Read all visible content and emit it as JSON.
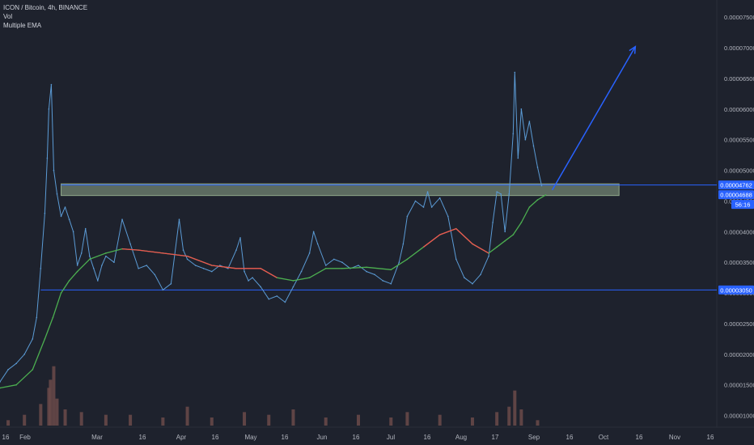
{
  "legend": {
    "symbol_line": "ICON / Bitcoin, 4h, BINANCE",
    "volume_label": "Vol",
    "indicator_label": "Multiple EMA"
  },
  "colors": {
    "background": "#1e222d",
    "grid": "#2a2e39",
    "price_line": "#5b9bd5",
    "ema_fast": "#ef5350",
    "ema_slow": "#4caf50",
    "support_line": "#2962ff",
    "zone_fill": "#8fa88a",
    "arrow": "#2962ff",
    "volume": "#6b4a4a",
    "text": "#b2b5be",
    "label_bg": "#2962ff",
    "label_text": "#ffffff"
  },
  "chart_data": {
    "type": "line",
    "title": "ICON / Bitcoin, 4h, BINANCE",
    "xlabel": "",
    "ylabel": "",
    "x_tick_labels": [
      "16",
      "Feb",
      "Mar",
      "16",
      "Apr",
      "16",
      "May",
      "16",
      "Jun",
      "16",
      "Jul",
      "16",
      "Aug",
      "17",
      "Sep",
      "16",
      "Oct",
      "16",
      "Nov",
      "16"
    ],
    "y_tick_labels": [
      "0.00007500",
      "0.00007000",
      "0.00006500",
      "0.00006000",
      "0.00005500",
      "0.00005000",
      "0.00004500",
      "0.00004000",
      "0.00003500",
      "0.00003000",
      "0.00002500",
      "0.00002000",
      "0.00001500",
      "0.00001000"
    ],
    "y_ticks": [
      7.5e-05,
      7e-05,
      6.5e-05,
      6e-05,
      5.5e-05,
      5e-05,
      4.5e-05,
      4e-05,
      3.5e-05,
      3e-05,
      2.5e-05,
      2e-05,
      1.5e-05,
      1e-05
    ],
    "ylim": [
      8.1e-06,
      7.78e-05
    ],
    "xlim": [
      0,
      880
    ],
    "price_labels": [
      {
        "text": "0.00004762",
        "value": 4.762e-05
      },
      {
        "text": "0.00004688",
        "value": 4.688e-05
      },
      {
        "text": "56:16",
        "value": 4.5e-05
      },
      {
        "text": "0.00003050",
        "value": 3.05e-05
      }
    ],
    "support_level": 3.05e-05,
    "resistance_level": 4.762e-05,
    "zone": {
      "x_start": 75,
      "x_end": 760,
      "top": 4.78e-05,
      "bottom": 4.59e-05
    },
    "arrow": {
      "from": [
        678,
        4.68e-05
      ],
      "to": [
        780,
        7.02e-05
      ]
    },
    "series": [
      {
        "name": "ICON / Bitcoin",
        "x": [
          0,
          10,
          20,
          30,
          40,
          45,
          50,
          55,
          58,
          60,
          63,
          66,
          70,
          75,
          80,
          85,
          90,
          95,
          100,
          105,
          110,
          115,
          120,
          125,
          130,
          140,
          150,
          160,
          170,
          180,
          190,
          200,
          210,
          220,
          225,
          230,
          240,
          250,
          260,
          270,
          280,
          290,
          295,
          300,
          305,
          310,
          320,
          330,
          340,
          350,
          360,
          370,
          380,
          385,
          390,
          400,
          410,
          420,
          430,
          440,
          450,
          460,
          470,
          480,
          490,
          495,
          500,
          510,
          520,
          525,
          530,
          540,
          550,
          560,
          570,
          580,
          590,
          600,
          605,
          610,
          615,
          620,
          625,
          630,
          632,
          636,
          640,
          645,
          650,
          655,
          660,
          665
        ],
        "y": [
          1.55e-05,
          1.75e-05,
          1.85e-05,
          2e-05,
          2.25e-05,
          2.6e-05,
          3.4e-05,
          4.3e-05,
          5.2e-05,
          6e-05,
          6.4e-05,
          5e-05,
          4.615e-05,
          4.25e-05,
          4.4e-05,
          4.2e-05,
          4e-05,
          3.45e-05,
          3.65e-05,
          4.05e-05,
          3.6e-05,
          3.4e-05,
          3.2e-05,
          3.45e-05,
          3.6e-05,
          3.5e-05,
          4.2e-05,
          3.8e-05,
          3.4e-05,
          3.45e-05,
          3.3e-05,
          3.05e-05,
          3.15e-05,
          4.2e-05,
          3.7e-05,
          3.55e-05,
          3.45e-05,
          3.4e-05,
          3.35e-05,
          3.45e-05,
          3.4e-05,
          3.7e-05,
          3.9e-05,
          3.35e-05,
          3.2e-05,
          3.25e-05,
          3.1e-05,
          2.9e-05,
          2.95e-05,
          2.85e-05,
          3.1e-05,
          3.35e-05,
          3.65e-05,
          4e-05,
          3.8e-05,
          3.45e-05,
          3.55e-05,
          3.5e-05,
          3.4e-05,
          3.45e-05,
          3.35e-05,
          3.3e-05,
          3.2e-05,
          3.15e-05,
          3.5e-05,
          3.8e-05,
          4.25e-05,
          4.5e-05,
          4.4e-05,
          4.65e-05,
          4.4e-05,
          4.55e-05,
          4.25e-05,
          3.55e-05,
          3.25e-05,
          3.15e-05,
          3.3e-05,
          3.6e-05,
          4.15e-05,
          4.65e-05,
          4.615e-05,
          4e-05,
          4.615e-05,
          5.6e-05,
          6.6e-05,
          5.2e-05,
          6e-05,
          5.5e-05,
          5.8e-05,
          5.4e-05,
          5.05e-05,
          4.75e-05
        ]
      },
      {
        "name": "EMA",
        "x": [
          0,
          20,
          40,
          55,
          65,
          75,
          85,
          95,
          110,
          130,
          150,
          170,
          200,
          230,
          260,
          290,
          320,
          340,
          360,
          380,
          400,
          420,
          450,
          480,
          500,
          520,
          540,
          560,
          580,
          600,
          610,
          620,
          630,
          640,
          650,
          660,
          670
        ],
        "y": [
          1.45e-05,
          1.5e-05,
          1.75e-05,
          2.25e-05,
          2.6e-05,
          3e-05,
          3.2e-05,
          3.35e-05,
          3.55e-05,
          3.65e-05,
          3.72e-05,
          3.7e-05,
          3.65e-05,
          3.6e-05,
          3.45e-05,
          3.4e-05,
          3.4e-05,
          3.25e-05,
          3.2e-05,
          3.25e-05,
          3.4e-05,
          3.4e-05,
          3.42e-05,
          3.38e-05,
          3.55e-05,
          3.75e-05,
          3.95e-05,
          4.05e-05,
          3.8e-05,
          3.65e-05,
          3.75e-05,
          3.85e-05,
          3.95e-05,
          4.15e-05,
          4.4e-05,
          4.52e-05,
          4.6e-05
        ]
      }
    ],
    "volume": {
      "x": [
        10,
        30,
        50,
        60,
        62,
        66,
        70,
        80,
        100,
        130,
        160,
        200,
        230,
        260,
        300,
        330,
        360,
        400,
        440,
        480,
        500,
        540,
        580,
        610,
        625,
        632,
        640,
        660
      ],
      "values": [
        2,
        4,
        8,
        14,
        17,
        22,
        10,
        6,
        5,
        4,
        4,
        3,
        7,
        3,
        5,
        4,
        6,
        3,
        4,
        3,
        5,
        4,
        3,
        5,
        7,
        13,
        6,
        2
      ],
      "max": 24
    },
    "grid": false,
    "legend_position": "top-left"
  }
}
